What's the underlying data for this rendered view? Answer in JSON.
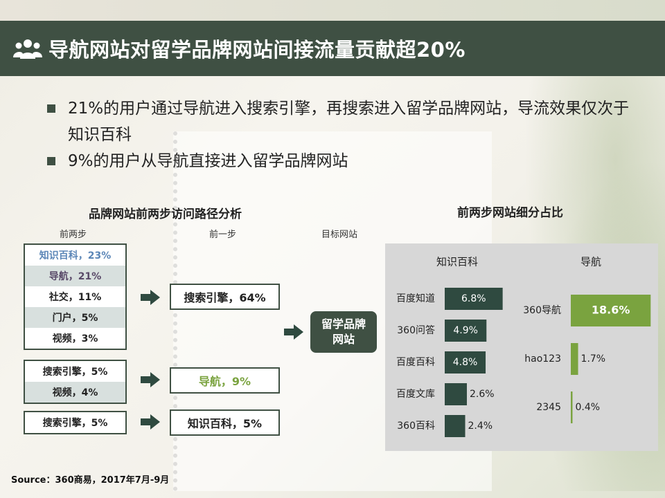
{
  "header": {
    "title": "导航网站对留学品牌网站间接流量贡献超20%"
  },
  "bullets": [
    "21%的用户通过导航进入搜索引擎，再搜索进入留学品牌网站，导流效果仅次于知识百科",
    "9%的用户从导航直接进入留学品牌网站"
  ],
  "flow": {
    "title": "品牌网站前两步访问路径分析",
    "col_labels": {
      "two_steps": "前两步",
      "one_step": "前一步",
      "target": "目标网站"
    },
    "groups": [
      {
        "rows": [
          "知识百科，23%",
          "导航，21%",
          "社交，11%",
          "门户，5%",
          "视频，3%"
        ]
      },
      {
        "rows": [
          "搜索引擎，5%",
          "视频，4%"
        ]
      },
      {
        "rows": [
          "搜索引擎，5%"
        ]
      }
    ],
    "steps": [
      "搜索引擎，64%",
      "导航，9%",
      "知识百科，5%"
    ],
    "target": "留学品牌网站"
  },
  "chart_data": {
    "title": "前两步网站细分占比",
    "type": "bar",
    "orientation": "horizontal",
    "panels": [
      {
        "name": "知识百科",
        "categories": [
          "百度知道",
          "360问答",
          "百度百科",
          "百度文库",
          "360百科"
        ],
        "values": [
          6.8,
          4.9,
          4.8,
          2.6,
          2.4
        ],
        "labels": [
          "6.8%",
          "4.9%",
          "4.8%",
          "2.6%",
          "2.4%"
        ],
        "color": "#2f4a40"
      },
      {
        "name": "导航",
        "categories": [
          "360导航",
          "hao123",
          "2345"
        ],
        "values": [
          18.6,
          1.7,
          0.4
        ],
        "labels": [
          "18.6%",
          "1.7%",
          "0.4%"
        ],
        "color": "#7aa33f"
      }
    ]
  },
  "source": "Source：360商易，2017年7月-9月",
  "colors": {
    "header_bg": "#3f5043",
    "dark_bar": "#2f4a40",
    "green_bar": "#7aa33f",
    "highlight_blue": "#5b86b7"
  }
}
